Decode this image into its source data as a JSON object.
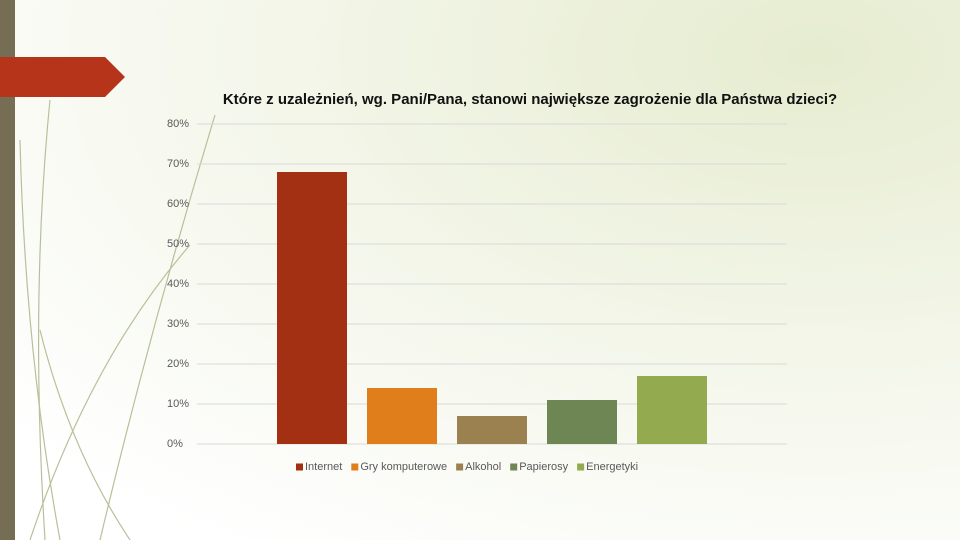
{
  "chart_data": {
    "type": "bar",
    "title": "Które z uzależnień, wg. Pani/Pana, stanowi największe zagrożenie dla Państwa dzieci?",
    "series": [
      {
        "name": "Internet",
        "color": "#a33013",
        "values": [
          68
        ]
      },
      {
        "name": "Gry komputerowe",
        "color": "#e07e1c",
        "values": [
          14
        ]
      },
      {
        "name": "Alkohol",
        "color": "#9b8150",
        "values": [
          7
        ]
      },
      {
        "name": "Papierosy",
        "color": "#6e8653",
        "values": [
          11
        ]
      },
      {
        "name": "Energetyki",
        "color": "#93ab4e",
        "values": [
          17
        ]
      }
    ],
    "ylim": [
      0,
      80
    ],
    "yticks": [
      {
        "value": 0,
        "label": "0%"
      },
      {
        "value": 10,
        "label": "10%"
      },
      {
        "value": 20,
        "label": "20%"
      },
      {
        "value": 30,
        "label": "30%"
      },
      {
        "value": 40,
        "label": "40%"
      },
      {
        "value": 50,
        "label": "50%"
      },
      {
        "value": 60,
        "label": "60%"
      },
      {
        "value": 70,
        "label": "70%"
      },
      {
        "value": 80,
        "label": "80%"
      }
    ],
    "grid": true,
    "legend": "bottom"
  }
}
